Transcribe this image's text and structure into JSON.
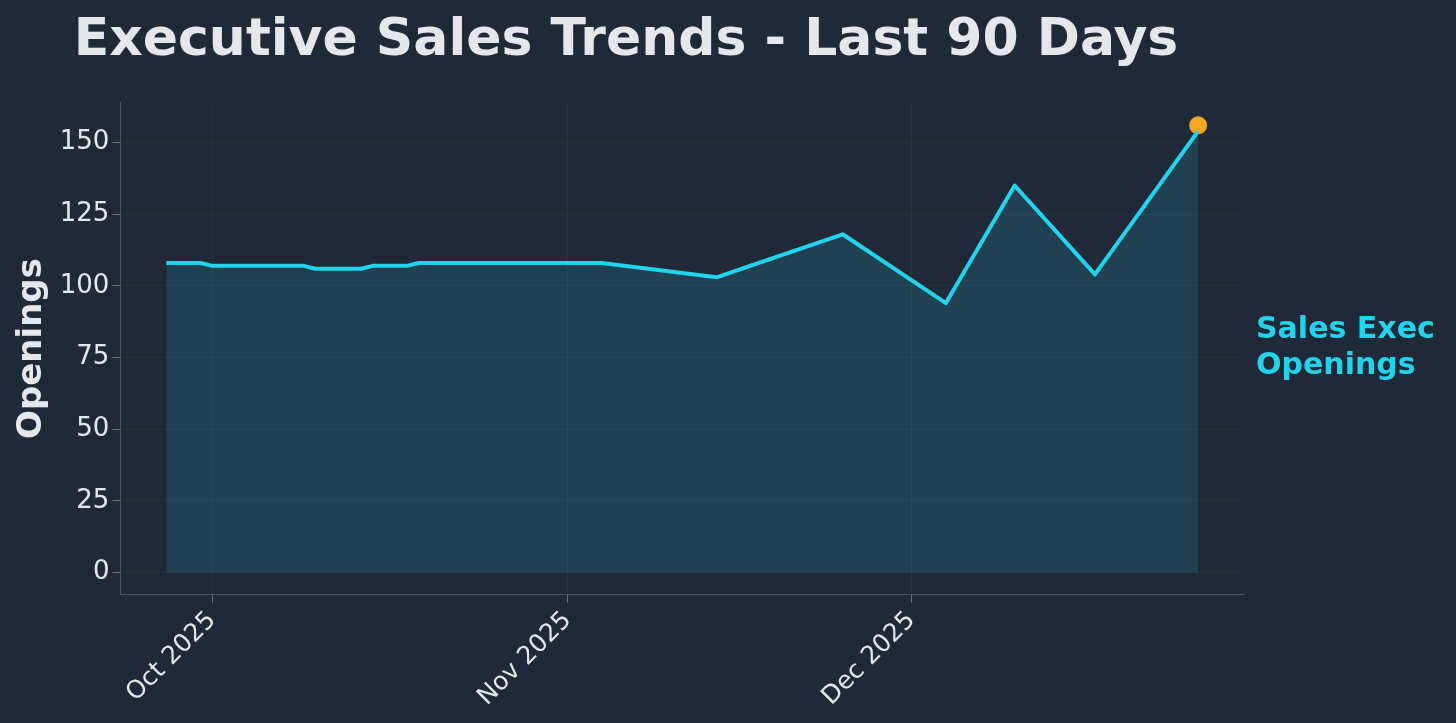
{
  "chart_data": {
    "type": "area",
    "title": "Executive Sales Trends - Last 90 Days",
    "ylabel": "Openings",
    "xlim": [
      "2025-09-23",
      "2025-12-30"
    ],
    "xticks": [
      {
        "value": "2025-10-01",
        "label": "Oct 2025"
      },
      {
        "value": "2025-11-01",
        "label": "Nov 2025"
      },
      {
        "value": "2025-12-01",
        "label": "Dec 2025"
      }
    ],
    "ylim": [
      -7.7,
      164
    ],
    "yticks": [
      0,
      25,
      50,
      75,
      100,
      125,
      150
    ],
    "grid": true,
    "legend": false,
    "marker": "none",
    "line_style": "solid",
    "series": [
      {
        "name": "Sales Exec Openings",
        "color": "#22d3ee",
        "x": [
          "2025-09-27",
          "2025-09-30",
          "2025-10-01",
          "2025-10-09",
          "2025-10-10",
          "2025-10-14",
          "2025-10-15",
          "2025-10-18",
          "2025-10-19",
          "2025-11-04",
          "2025-11-14",
          "2025-11-25",
          "2025-12-04",
          "2025-12-10",
          "2025-12-17",
          "2025-12-26"
        ],
        "values": [
          108,
          108,
          107,
          107,
          106,
          106,
          107,
          107,
          108,
          108,
          103,
          118,
          94,
          135,
          104,
          154
        ]
      },
      {
        "type": "scatter",
        "color": "#f5a623",
        "marker": "circle",
        "x": [
          "2025-12-26"
        ],
        "values": [
          156
        ]
      }
    ]
  }
}
